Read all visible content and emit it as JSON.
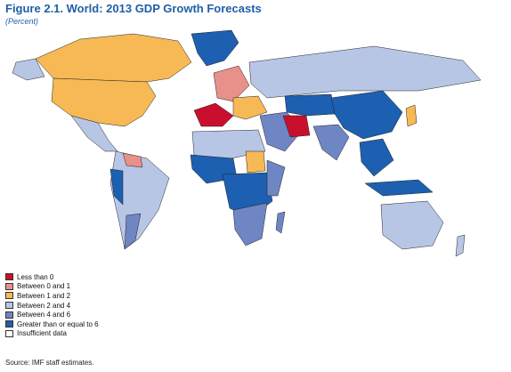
{
  "header": {
    "title": "Figure 2.1.  World: 2013 GDP Growth Forecasts",
    "subtitle": "(Percent)"
  },
  "legend": {
    "items": [
      {
        "label": "Less than 0",
        "color": "#c8102e"
      },
      {
        "label": "Between 0 and 1",
        "color": "#e8908a"
      },
      {
        "label": "Between 1 and 2",
        "color": "#f7b955"
      },
      {
        "label": "Between 2 and 4",
        "color": "#b8c6e6"
      },
      {
        "label": "Between 4 and 6",
        "color": "#6f86c4"
      },
      {
        "label": "Greater than or equal to 6",
        "color": "#1d5fb0"
      },
      {
        "label": "Insufficient data",
        "color": "#ffffff"
      }
    ]
  },
  "footer": {
    "source": "Source: IMF staff estimates."
  }
}
